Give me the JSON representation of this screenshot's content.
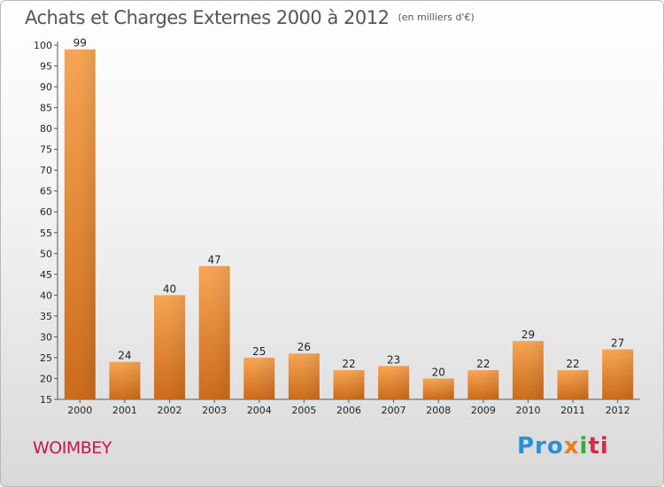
{
  "chart_data": {
    "type": "bar",
    "title": "Achats et Charges Externes 2000 à 2012",
    "unit": "(en milliers d'€)",
    "categories": [
      "2000",
      "2001",
      "2002",
      "2003",
      "2004",
      "2005",
      "2006",
      "2007",
      "2008",
      "2009",
      "2010",
      "2011",
      "2012"
    ],
    "values": [
      99,
      24,
      40,
      47,
      25,
      26,
      22,
      23,
      20,
      22,
      29,
      22,
      27
    ],
    "ylim": [
      15,
      100
    ],
    "yticks": [
      15,
      20,
      25,
      30,
      35,
      40,
      45,
      50,
      55,
      60,
      65,
      70,
      75,
      80,
      85,
      90,
      95,
      100
    ],
    "grid": false,
    "bar_color": "#f0932f"
  },
  "place": "WOIMBEY",
  "brand": {
    "p1": "Pro",
    "p2": "x",
    "p3": "i",
    "p4": "ti"
  }
}
